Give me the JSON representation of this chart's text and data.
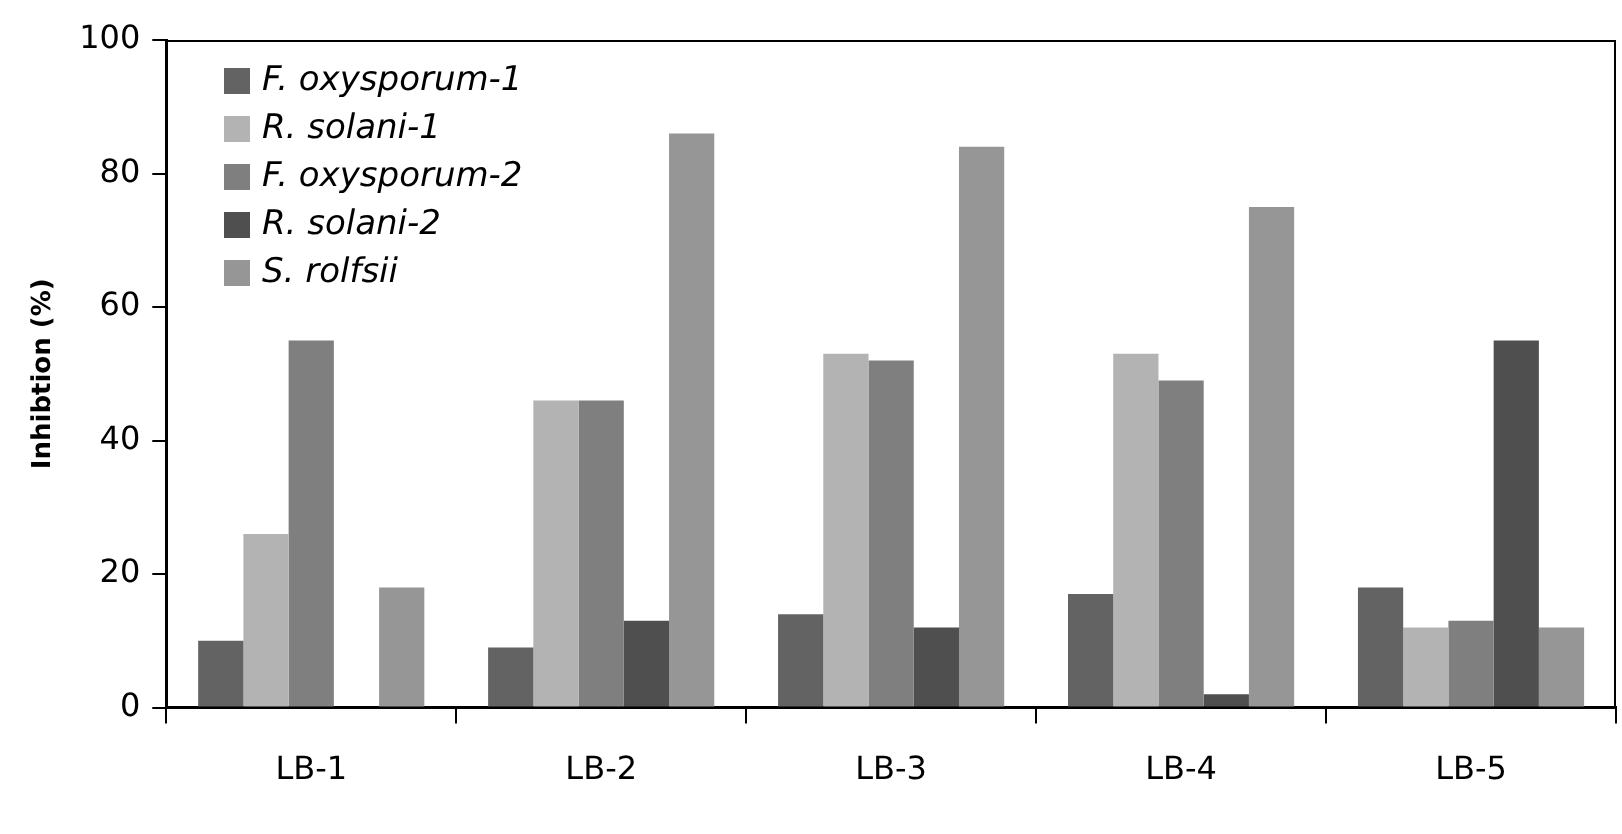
{
  "chart_data": {
    "type": "bar",
    "ylabel": "Inhibtion (%)",
    "categories": [
      "LB-1",
      "LB-2",
      "LB-3",
      "LB-4",
      "LB-5"
    ],
    "series": [
      {
        "name": "F. oxysporum-1",
        "color": "#636363",
        "values": [
          10,
          9,
          14,
          17,
          18
        ]
      },
      {
        "name": "R. solani-1",
        "color": "#b3b3b3",
        "values": [
          26,
          46,
          53,
          53,
          12
        ]
      },
      {
        "name": "F. oxysporum-2",
        "color": "#7f7f7f",
        "values": [
          55,
          46,
          52,
          49,
          13
        ]
      },
      {
        "name": "R. solani-2",
        "color": "#4f4f4f",
        "values": [
          0,
          13,
          12,
          2,
          55
        ]
      },
      {
        "name": "S. rolfsii",
        "color": "#969696",
        "values": [
          18,
          86,
          84,
          75,
          12
        ]
      }
    ],
    "ylim": [
      0,
      100
    ],
    "yticks": [
      0,
      20,
      40,
      60,
      80,
      100
    ],
    "grid": false,
    "legend": "top left"
  }
}
